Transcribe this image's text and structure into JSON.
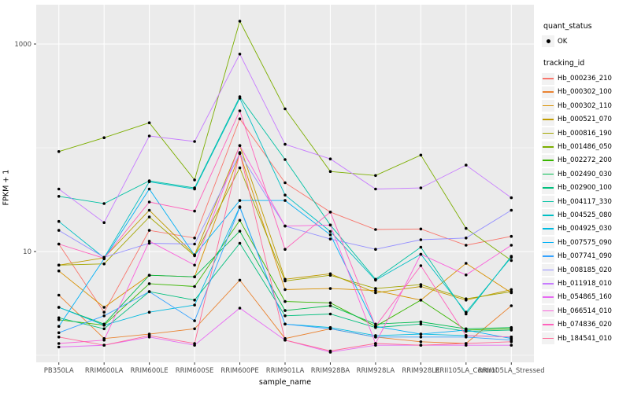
{
  "figure": {
    "background": "#FFFFFF",
    "panel_bg": "#EBEBEB",
    "grid_color": "#FFFFFF",
    "tick_color": "#333333",
    "tick_label_color": "#4D4D4D",
    "point_color": "#000000"
  },
  "axes": {
    "ylabel": "FPKM + 1",
    "xlabel": "sample_name",
    "yticks": [
      {
        "label": "1000",
        "value": 1000
      },
      {
        "label": "10",
        "value": 10
      }
    ]
  },
  "legend": {
    "quant_title": "quant_status",
    "quant_items": [
      {
        "label": "OK"
      }
    ],
    "tracking_title": "tracking_id"
  },
  "chart_data": {
    "type": "line",
    "log_y": true,
    "ylim": [
      1,
      2400
    ],
    "grid": true,
    "legend_position": "right",
    "x": [
      "PB350LA",
      "RRIM600LA",
      "RRIM600LE",
      "RRIM600SE",
      "RRIM600PE",
      "RRIM901LA",
      "RRIM928BA",
      "RRIM928LA",
      "RRIM928LE",
      "RRII105LA_Control",
      "RRII105LA_Stressed"
    ],
    "series": [
      {
        "name": "Hb_000236_210",
        "color": "#F8766D",
        "values": [
          11.8,
          2.6,
          16,
          13.5,
          190,
          46,
          24,
          16.3,
          16.5,
          11.5,
          14
        ]
      },
      {
        "name": "Hb_000302_100",
        "color": "#EA8331",
        "values": [
          3.8,
          1.45,
          1.6,
          1.8,
          5.3,
          1.45,
          1.8,
          1.5,
          1.35,
          1.3,
          3.0
        ]
      },
      {
        "name": "Hb_000302_110",
        "color": "#D89000",
        "values": [
          6.5,
          2.9,
          5.9,
          5.7,
          88,
          4.3,
          4.4,
          4.2,
          3.4,
          7.7,
          4.0
        ]
      },
      {
        "name": "Hb_000521_070",
        "color": "#C09B00",
        "values": [
          7.4,
          8.7,
          25,
          9.3,
          105,
          5.4,
          6.1,
          4.0,
          4.6,
          3.4,
          4.3
        ]
      },
      {
        "name": "Hb_000816_190",
        "color": "#A3A500",
        "values": [
          7.4,
          7.6,
          21.5,
          9.1,
          64,
          5.2,
          5.9,
          4.4,
          4.8,
          3.5,
          4.1
        ]
      },
      {
        "name": "Hb_001486_050",
        "color": "#7CAE00",
        "values": [
          92,
          125,
          174,
          49,
          1660,
          237,
          59,
          54,
          85,
          16.7,
          8.2
        ]
      },
      {
        "name": "Hb_002272_200",
        "color": "#39B600",
        "values": [
          2.2,
          1.95,
          4.9,
          4.6,
          20,
          3.3,
          3.2,
          1.9,
          3.4,
          1.75,
          1.8
        ]
      },
      {
        "name": "Hb_002490_030",
        "color": "#00BB4E",
        "values": [
          2.9,
          2.0,
          5.9,
          5.7,
          15.7,
          2.7,
          3.0,
          2.0,
          2.1,
          1.8,
          1.85
        ]
      },
      {
        "name": "Hb_002900_100",
        "color": "#00BF7D",
        "values": [
          2.3,
          1.8,
          4.1,
          3.4,
          12,
          2.4,
          2.5,
          1.85,
          2.0,
          1.7,
          1.75
        ]
      },
      {
        "name": "Hb_004117_330",
        "color": "#00C1A3",
        "values": [
          34,
          29,
          48,
          41,
          310,
          77,
          18,
          5.4,
          11,
          2.5,
          9
        ]
      },
      {
        "name": "Hb_004525_080",
        "color": "#00BFC4",
        "values": [
          19.5,
          8.7,
          47,
          40,
          300,
          35,
          15.6,
          5.3,
          9.4,
          2.6,
          8.8
        ]
      },
      {
        "name": "Hb_004925_030",
        "color": "#00BAE0",
        "values": [
          2.9,
          1.95,
          2.6,
          3.05,
          27,
          2.0,
          1.85,
          1.55,
          1.6,
          1.55,
          1.5
        ]
      },
      {
        "name": "Hb_007575_090",
        "color": "#00B0F6",
        "values": [
          1.9,
          8.5,
          40,
          9.2,
          31,
          31,
          14.5,
          1.9,
          1.6,
          1.75,
          1.45
        ]
      },
      {
        "name": "Hb_007741_090",
        "color": "#35A2FF",
        "values": [
          1.65,
          2.4,
          4.1,
          2.15,
          26.6,
          2.0,
          1.8,
          1.5,
          1.5,
          1.5,
          1.4
        ]
      },
      {
        "name": "Hb_008185_020",
        "color": "#9590FF",
        "values": [
          16,
          8.8,
          12,
          11.8,
          88,
          17.6,
          13.2,
          10.5,
          13,
          13.5,
          25
        ]
      },
      {
        "name": "Hb_011918_010",
        "color": "#C77CFF",
        "values": [
          40,
          19,
          130,
          115,
          800,
          108,
          78,
          40,
          41,
          68,
          33
        ]
      },
      {
        "name": "Hb_054865_160",
        "color": "#E76BF3",
        "values": [
          1.2,
          1.25,
          1.5,
          1.25,
          2.85,
          1.4,
          1.07,
          1.25,
          1.25,
          1.25,
          1.25
        ]
      },
      {
        "name": "Hb_066514_010",
        "color": "#FA62DB",
        "values": [
          1.3,
          1.4,
          12.6,
          7.4,
          105,
          17.6,
          18,
          1.3,
          9.4,
          5.95,
          11.5
        ]
      },
      {
        "name": "Hb_074836_020",
        "color": "#FF62BC",
        "values": [
          11.8,
          8.6,
          30,
          24.5,
          227,
          10.5,
          24,
          1.9,
          7.3,
          1.55,
          1.5
        ]
      },
      {
        "name": "Hb_184541_010",
        "color": "#FF6A98",
        "values": [
          1.5,
          1.25,
          1.55,
          1.3,
          90,
          1.4,
          1.1,
          1.3,
          1.25,
          1.3,
          1.35
        ]
      }
    ]
  }
}
